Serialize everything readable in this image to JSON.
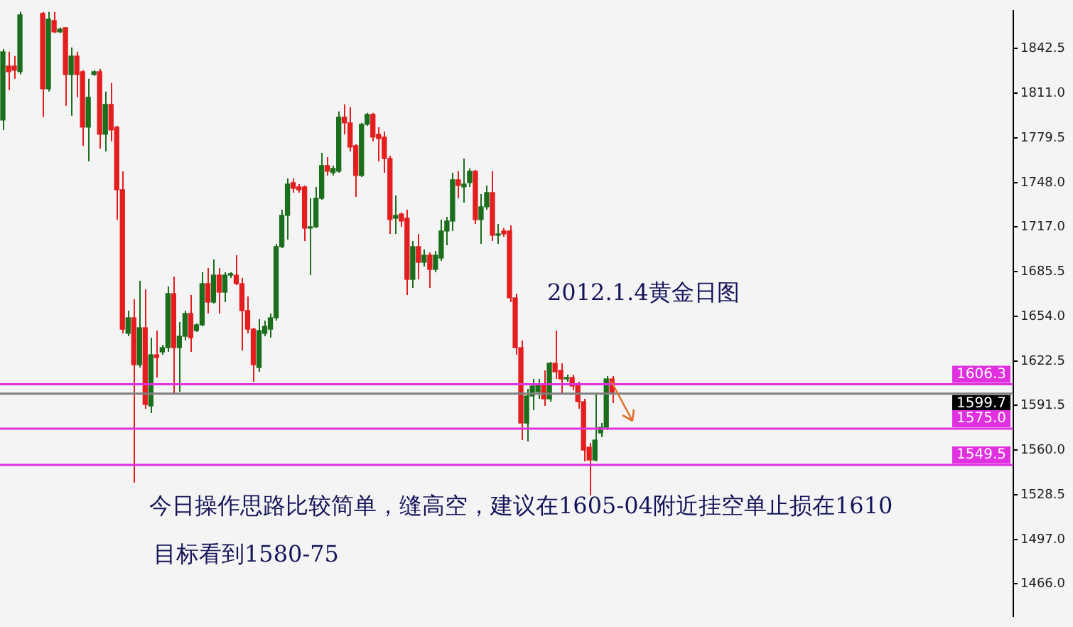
{
  "chart_data": {
    "type": "candlestick",
    "categories": [
      null,
      null,
      null,
      null,
      null,
      null,
      null,
      null,
      null,
      null,
      null,
      null,
      null,
      null,
      null,
      null,
      null,
      null,
      null,
      null,
      null,
      null,
      null,
      null,
      null,
      null,
      null,
      null,
      null,
      null,
      null,
      null,
      null,
      null,
      null,
      null,
      null,
      null,
      null,
      null,
      null,
      null,
      null,
      null,
      null,
      null,
      null,
      null,
      null,
      null,
      null,
      null,
      null,
      null,
      null,
      null,
      null,
      null,
      null,
      null,
      null,
      null,
      null,
      null,
      null,
      null,
      null,
      null,
      null,
      null,
      null,
      null,
      null,
      null,
      null,
      null,
      null,
      null,
      null,
      null,
      null,
      null,
      null,
      null,
      null,
      null,
      null,
      null,
      null,
      null,
      null,
      null,
      null,
      null,
      null,
      null,
      null,
      null,
      null,
      null,
      null,
      null,
      null,
      null,
      null,
      null,
      null,
      null,
      null,
      null,
      null,
      null,
      null,
      null,
      null,
      null,
      null,
      null,
      null,
      null,
      null,
      null,
      null,
      null,
      null,
      null,
      null,
      null,
      null,
      null,
      null,
      null,
      null,
      null,
      null,
      null,
      null,
      null,
      null,
      null,
      null,
      null,
      null,
      null,
      null,
      null,
      null,
      null,
      null,
      null,
      null,
      null,
      null,
      null,
      null,
      null,
      null,
      null,
      null,
      null,
      null,
      null,
      null,
      null,
      null,
      null,
      null,
      null,
      null,
      null,
      null,
      null,
      null,
      null,
      null,
      null,
      null,
      null
    ],
    "ohlc": [
      [
        1792,
        1842,
        1785,
        1840
      ],
      [
        1830,
        1840,
        1813,
        1826
      ],
      [
        1830,
        1837,
        1821,
        1827
      ],
      [
        1826,
        1868,
        1824,
        1866
      ],
      null,
      null,
      null,
      [
        1867,
        1868,
        1794,
        1814
      ],
      [
        1814,
        1868,
        1812,
        1863
      ],
      [
        1862,
        1868,
        1853,
        1854
      ],
      [
        1854,
        1857,
        1853,
        1856
      ],
      [
        1857,
        1857,
        1802,
        1824
      ],
      [
        1824,
        1843,
        1795,
        1837
      ],
      [
        1837,
        1840,
        1808,
        1824
      ],
      [
        1826,
        1827,
        1774,
        1787
      ],
      [
        1787,
        1821,
        1763,
        1808
      ],
      [
        1824,
        1827,
        1823,
        1826
      ],
      [
        1826,
        1828,
        1772,
        1782
      ],
      [
        1782,
        1812,
        1770,
        1803
      ],
      [
        1803,
        1818,
        1777,
        1785
      ],
      [
        1787,
        1788,
        1722,
        1743
      ],
      [
        1743,
        1756,
        1642,
        1645
      ],
      [
        1642,
        1658,
        1640,
        1653
      ],
      [
        1653,
        1666,
        1537,
        1620
      ],
      [
        1620,
        1679,
        1618,
        1646
      ],
      [
        1646,
        1673,
        1589,
        1592
      ],
      [
        1591,
        1639,
        1586,
        1627
      ],
      [
        1627,
        1644,
        1611,
        1625
      ],
      [
        1629,
        1634,
        1627,
        1632
      ],
      [
        1632,
        1675,
        1629,
        1670
      ],
      [
        1670,
        1682,
        1600,
        1632
      ],
      [
        1632,
        1650,
        1601,
        1640
      ],
      [
        1640,
        1658,
        1637,
        1656
      ],
      [
        1656,
        1669,
        1629,
        1639
      ],
      [
        1644,
        1649,
        1643,
        1648
      ],
      [
        1648,
        1685,
        1647,
        1677
      ],
      [
        1677,
        1688,
        1656,
        1664
      ],
      [
        1664,
        1694,
        1663,
        1683
      ],
      [
        1683,
        1688,
        1656,
        1671
      ],
      [
        1671,
        1685,
        1664,
        1683
      ],
      [
        1683,
        1685,
        1681,
        1684
      ],
      [
        1683,
        1697,
        1676,
        1677
      ],
      [
        1677,
        1681,
        1630,
        1658
      ],
      [
        1658,
        1668,
        1642,
        1645
      ],
      [
        1645,
        1646,
        1608,
        1620
      ],
      [
        1618,
        1652,
        1615,
        1644
      ],
      [
        1642,
        1651,
        1640,
        1647
      ],
      [
        1645,
        1656,
        1639,
        1653
      ],
      [
        1653,
        1705,
        1651,
        1703
      ],
      [
        1703,
        1729,
        1702,
        1725
      ],
      [
        1725,
        1751,
        1708,
        1747
      ],
      [
        1748,
        1751,
        1741,
        1744
      ],
      [
        1745,
        1747,
        1741,
        1743
      ],
      [
        1745,
        1746,
        1707,
        1716
      ],
      [
        1716,
        1737,
        1683,
        1717
      ],
      [
        1717,
        1745,
        1716,
        1737
      ],
      [
        1737,
        1769,
        1736,
        1760
      ],
      [
        1760,
        1766,
        1753,
        1756
      ],
      [
        1755,
        1760,
        1753,
        1758
      ],
      [
        1756,
        1798,
        1755,
        1794
      ],
      [
        1794,
        1803,
        1782,
        1790
      ],
      [
        1790,
        1801,
        1770,
        1773
      ],
      [
        1774,
        1775,
        1738,
        1753
      ],
      [
        1753,
        1790,
        1752,
        1789
      ],
      [
        1789,
        1797,
        1788,
        1796
      ],
      [
        1796,
        1797,
        1777,
        1780
      ],
      [
        1782,
        1787,
        1763,
        1779
      ],
      [
        1780,
        1784,
        1755,
        1765
      ],
      [
        1765,
        1767,
        1712,
        1722
      ],
      [
        1723,
        1739,
        1712,
        1725
      ],
      [
        1726,
        1727,
        1717,
        1721
      ],
      [
        1723,
        1729,
        1669,
        1680
      ],
      [
        1680,
        1707,
        1674,
        1703
      ],
      [
        1703,
        1712,
        1680,
        1692
      ],
      [
        1692,
        1701,
        1689,
        1697
      ],
      [
        1697,
        1699,
        1674,
        1687
      ],
      [
        1687,
        1700,
        1685,
        1697
      ],
      [
        1695,
        1722,
        1693,
        1714
      ],
      [
        1714,
        1724,
        1704,
        1721
      ],
      [
        1721,
        1755,
        1714,
        1750
      ],
      [
        1750,
        1756,
        1737,
        1746
      ],
      [
        1745,
        1765,
        1734,
        1747
      ],
      [
        1748,
        1758,
        1745,
        1756
      ],
      [
        1756,
        1757,
        1719,
        1722
      ],
      [
        1722,
        1740,
        1705,
        1731
      ],
      [
        1731,
        1746,
        1729,
        1741
      ],
      [
        1741,
        1756,
        1707,
        1711
      ],
      [
        1711,
        1719,
        1705,
        1712
      ],
      [
        1714,
        1716,
        1710,
        1712
      ],
      [
        1714,
        1718,
        1664,
        1667
      ],
      [
        1667,
        1670,
        1627,
        1632
      ],
      [
        1632,
        1637,
        1567,
        1579
      ],
      [
        1579,
        1603,
        1566,
        1598
      ],
      [
        1598,
        1610,
        1588,
        1605
      ],
      [
        1601,
        1610,
        1596,
        1606
      ],
      [
        1606,
        1616,
        1591,
        1596
      ],
      [
        1596,
        1622,
        1594,
        1621
      ],
      [
        1621,
        1644,
        1610,
        1615
      ],
      [
        1616,
        1621,
        1600,
        1610
      ],
      [
        1610,
        1613,
        1608,
        1611
      ],
      [
        1611,
        1613,
        1602,
        1605
      ],
      [
        1606,
        1608,
        1589,
        1594
      ],
      [
        1594,
        1596,
        1552,
        1560
      ],
      [
        1562,
        1565,
        1528,
        1553
      ],
      [
        1553,
        1600,
        1552,
        1567
      ],
      [
        1572,
        1579,
        1569,
        1576
      ],
      [
        1576,
        1612,
        1574,
        1610
      ],
      [
        1610,
        1612,
        1593,
        1600
      ],
      null,
      null,
      null,
      null,
      null,
      null,
      null,
      null,
      null,
      null,
      null,
      null,
      null,
      null,
      null,
      null,
      null,
      null,
      null,
      null,
      null,
      null,
      null,
      null,
      null,
      null,
      null,
      null,
      null,
      null,
      null,
      null,
      null,
      null,
      null,
      null,
      null,
      null,
      null,
      null,
      null,
      null,
      null,
      null,
      null,
      null,
      null,
      null,
      null,
      null,
      null,
      null,
      null,
      null,
      null,
      null,
      null,
      null,
      null,
      null,
      null,
      null,
      null,
      null,
      null,
      null,
      null,
      null,
      null,
      null
    ],
    "ylim": [
      1443,
      1869
    ],
    "yticks": [
      {
        "value": 1466,
        "label": "1466.0"
      },
      {
        "value": 1497,
        "label": "1497.0"
      },
      {
        "value": 1528.5,
        "label": "1528.5"
      },
      {
        "value": 1560,
        "label": "1560.0"
      },
      {
        "value": 1591.5,
        "label": "1591.5"
      },
      {
        "value": 1622.5,
        "label": "1622.5"
      },
      {
        "value": 1654,
        "label": "1654.0"
      },
      {
        "value": 1685.5,
        "label": "1685.5"
      },
      {
        "value": 1717,
        "label": "1717.0"
      },
      {
        "value": 1748,
        "label": "1748.0"
      },
      {
        "value": 1779.5,
        "label": "1779.5"
      },
      {
        "value": 1811,
        "label": "1811.0"
      },
      {
        "value": 1842.5,
        "label": "1842.5"
      }
    ],
    "tick_labels": "y",
    "grid": false,
    "legend": false,
    "ref_lines": [
      {
        "axis": "y",
        "value": 1606.3,
        "label": "1606.3",
        "color": "#e030e0"
      },
      {
        "axis": "y",
        "value": 1599.7,
        "label": "1599.7",
        "color": "#808080"
      },
      {
        "axis": "y",
        "value": 1575.0,
        "label": "1575.0",
        "color": "#e030e0"
      },
      {
        "axis": "y",
        "value": 1549.5,
        "label": "1549.5",
        "color": "#e030e0"
      }
    ],
    "annotations": [
      "2012.1.4黄金日图",
      "今日操作思路比较简单，缝高空，建议在1605-04附近挂空单止损在1610",
      "目标看到1580-75"
    ]
  }
}
